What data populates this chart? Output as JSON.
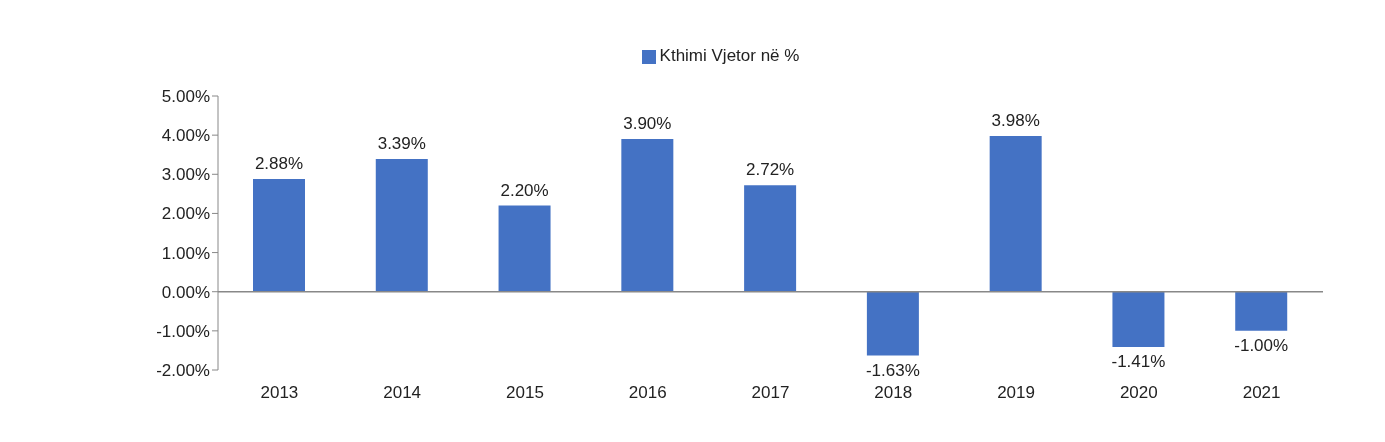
{
  "chart_data": {
    "type": "bar",
    "categories": [
      "2013",
      "2014",
      "2015",
      "2016",
      "2017",
      "2018",
      "2019",
      "2020",
      "2021"
    ],
    "series": [
      {
        "name": "Kthimi Vjetor në %",
        "color": "#4472c4",
        "values": [
          2.88,
          3.39,
          2.2,
          3.9,
          2.72,
          -1.63,
          3.98,
          -1.41,
          -1.0
        ],
        "value_labels": [
          "2.88%",
          "3.39%",
          "2.20%",
          "3.90%",
          "2.72%",
          "-1.63%",
          "3.98%",
          "-1.41%",
          "-1.00%"
        ]
      }
    ],
    "ylim": [
      -2,
      5
    ],
    "yticks": [
      {
        "value": -2,
        "label": "-2.00%"
      },
      {
        "value": -1,
        "label": "-1.00%"
      },
      {
        "value": 0,
        "label": "0.00%"
      },
      {
        "value": 1,
        "label": "1.00%"
      },
      {
        "value": 2,
        "label": "2.00%"
      },
      {
        "value": 3,
        "label": "3.00%"
      },
      {
        "value": 4,
        "label": "4.00%"
      },
      {
        "value": 5,
        "label": "5.00%"
      }
    ],
    "legend": "top"
  }
}
